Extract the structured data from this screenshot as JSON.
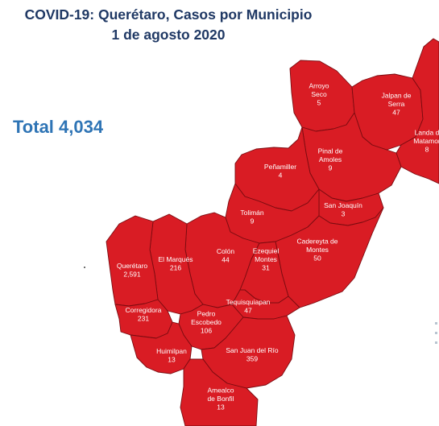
{
  "header": {
    "title_line1": "COVID-19: Querétaro, Casos por Municipio",
    "title_line2": "1 de agosto 2020"
  },
  "total_label": "Total 4,034",
  "colors": {
    "fill": "#d91c24",
    "border": "#7a0b10",
    "title": "#1f3864",
    "total": "#2e74b5"
  },
  "municipalities": [
    {
      "id": "arroyo-seco",
      "name_lines": [
        "Arroyo",
        "Seco"
      ],
      "cases": "5"
    },
    {
      "id": "jalpan",
      "name_lines": [
        "Jalpan de",
        "Serra"
      ],
      "cases": "47"
    },
    {
      "id": "landa",
      "name_lines": [
        "Landa d",
        "Matamor"
      ],
      "cases": "8"
    },
    {
      "id": "pinal",
      "name_lines": [
        "Pinal de",
        "Amoles"
      ],
      "cases": "9"
    },
    {
      "id": "penamiller",
      "name_lines": [
        "Peñamiller"
      ],
      "cases": "4"
    },
    {
      "id": "san-joaquin",
      "name_lines": [
        "San Joaquín"
      ],
      "cases": "3"
    },
    {
      "id": "toliman",
      "name_lines": [
        "Tolimán"
      ],
      "cases": "9"
    },
    {
      "id": "cadereyta",
      "name_lines": [
        "Cadereyta de",
        "Montes"
      ],
      "cases": "50"
    },
    {
      "id": "colon",
      "name_lines": [
        "Colón"
      ],
      "cases": "44"
    },
    {
      "id": "el-marques",
      "name_lines": [
        "El  Marqués"
      ],
      "cases": "216"
    },
    {
      "id": "queretaro",
      "name_lines": [
        "Querétaro"
      ],
      "cases": "2,591"
    },
    {
      "id": "ezequiel",
      "name_lines": [
        "Ezequiel",
        "Montes"
      ],
      "cases": "31"
    },
    {
      "id": "corregidora",
      "name_lines": [
        "Corregidora"
      ],
      "cases": "231"
    },
    {
      "id": "tequisquiapan",
      "name_lines": [
        "Tequisquiapan"
      ],
      "cases": "47"
    },
    {
      "id": "pedro",
      "name_lines": [
        "Pedro",
        "Escobedo"
      ],
      "cases": "106"
    },
    {
      "id": "huimilpan",
      "name_lines": [
        "Huimilpan"
      ],
      "cases": "13"
    },
    {
      "id": "san-juan",
      "name_lines": [
        "San Juan del Río"
      ],
      "cases": "359"
    },
    {
      "id": "amealco",
      "name_lines": [
        "Amealco",
        "de Bonfil"
      ],
      "cases": "13"
    }
  ]
}
